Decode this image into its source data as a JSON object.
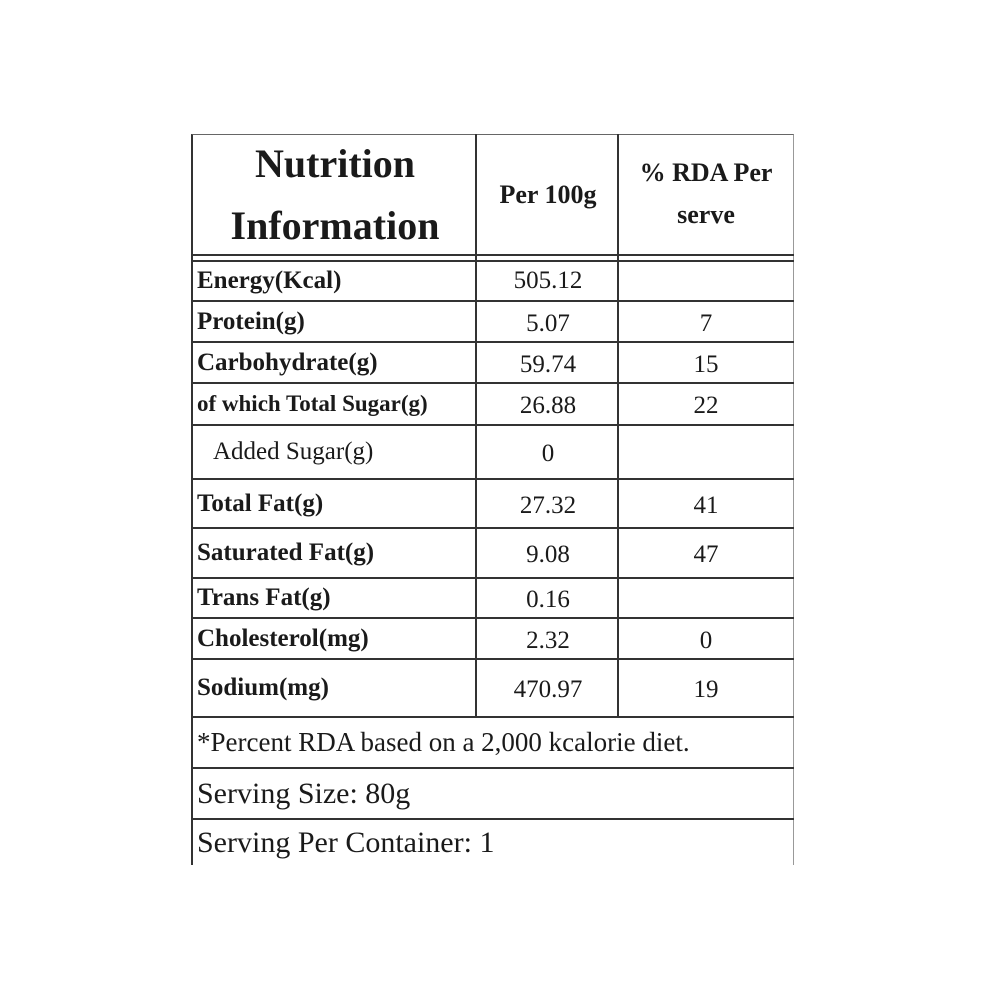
{
  "header": {
    "title_line1": "Nutrition",
    "title_line2": "Information",
    "col_per100": "Per 100g",
    "col_rda_line1": "% RDA Per",
    "col_rda_line2": "serve"
  },
  "rows": [
    {
      "name": "Energy(Kcal)",
      "per100": "505.12",
      "rda": ""
    },
    {
      "name": "Protein(g)",
      "per100": "5.07",
      "rda": "7"
    },
    {
      "name": "Carbohydrate(g)",
      "per100": "59.74",
      "rda": "15"
    },
    {
      "name": "of which Total Sugar(g)",
      "per100": "26.88",
      "rda": "22"
    },
    {
      "name": "Added Sugar(g)",
      "per100": "0",
      "rda": ""
    },
    {
      "name": "Total Fat(g)",
      "per100": "27.32",
      "rda": "41"
    },
    {
      "name": "Saturated Fat(g)",
      "per100": "9.08",
      "rda": "47"
    },
    {
      "name": "Trans Fat(g)",
      "per100": "0.16",
      "rda": ""
    },
    {
      "name": "Cholesterol(mg)",
      "per100": "2.32",
      "rda": "0"
    },
    {
      "name": "Sodium(mg)",
      "per100": "470.97",
      "rda": "19"
    }
  ],
  "footer": {
    "rda_note": "*Percent RDA based on a 2,000 kcalorie diet.",
    "serving_size": "Serving Size: 80g",
    "serving_per_container": "Serving Per Container: 1"
  }
}
